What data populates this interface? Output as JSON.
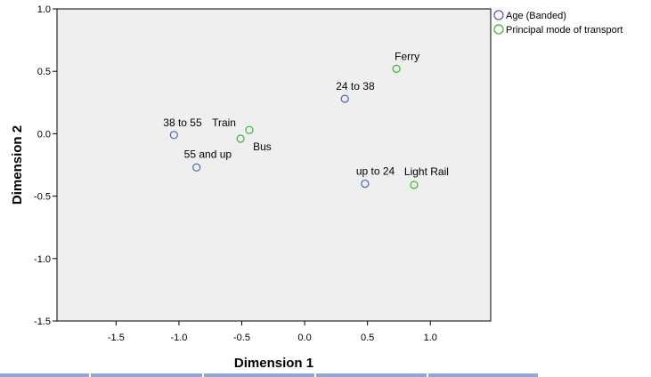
{
  "chart_data": {
    "type": "scatter",
    "title": "",
    "xlabel": "Dimension 1",
    "ylabel": "Dimension 2",
    "xlim": [
      -1.97,
      1.48
    ],
    "ylim": [
      -1.5,
      1.0
    ],
    "xticks": [
      "-1.5",
      "-1.0",
      "-0.5",
      "0.0",
      "0.5",
      "1.0"
    ],
    "xtick_values": [
      -1.5,
      -1.0,
      -0.5,
      0.0,
      0.5,
      1.0
    ],
    "yticks": [
      "1.0",
      "0.5",
      "0.0",
      "-0.5",
      "-1.0",
      "-1.5"
    ],
    "ytick_values": [
      1.0,
      0.5,
      0.0,
      -0.5,
      -1.0,
      -1.5
    ],
    "grid": false,
    "legend_position": "top-right, outside plot",
    "plot_background": "#efefef",
    "series": [
      {
        "name": "Age (Banded)",
        "color": "#4a64b4",
        "marker": "open-circle",
        "points": [
          {
            "label": "38 to 55",
            "x": -1.04,
            "y": -0.01
          },
          {
            "label": "55 and up",
            "x": -0.86,
            "y": -0.27
          },
          {
            "label": "24 to 38",
            "x": 0.32,
            "y": 0.28
          },
          {
            "label": "up to 24",
            "x": 0.48,
            "y": -0.4
          }
        ]
      },
      {
        "name": "Principal mode of transport",
        "color": "#3cb43c",
        "marker": "open-circle",
        "points": [
          {
            "label": "Train",
            "x": -0.44,
            "y": 0.03
          },
          {
            "label": "Bus",
            "x": -0.51,
            "y": -0.04
          },
          {
            "label": "Ferry",
            "x": 0.73,
            "y": 0.52
          },
          {
            "label": "Light Rail",
            "x": 0.87,
            "y": -0.41
          }
        ]
      }
    ]
  }
}
